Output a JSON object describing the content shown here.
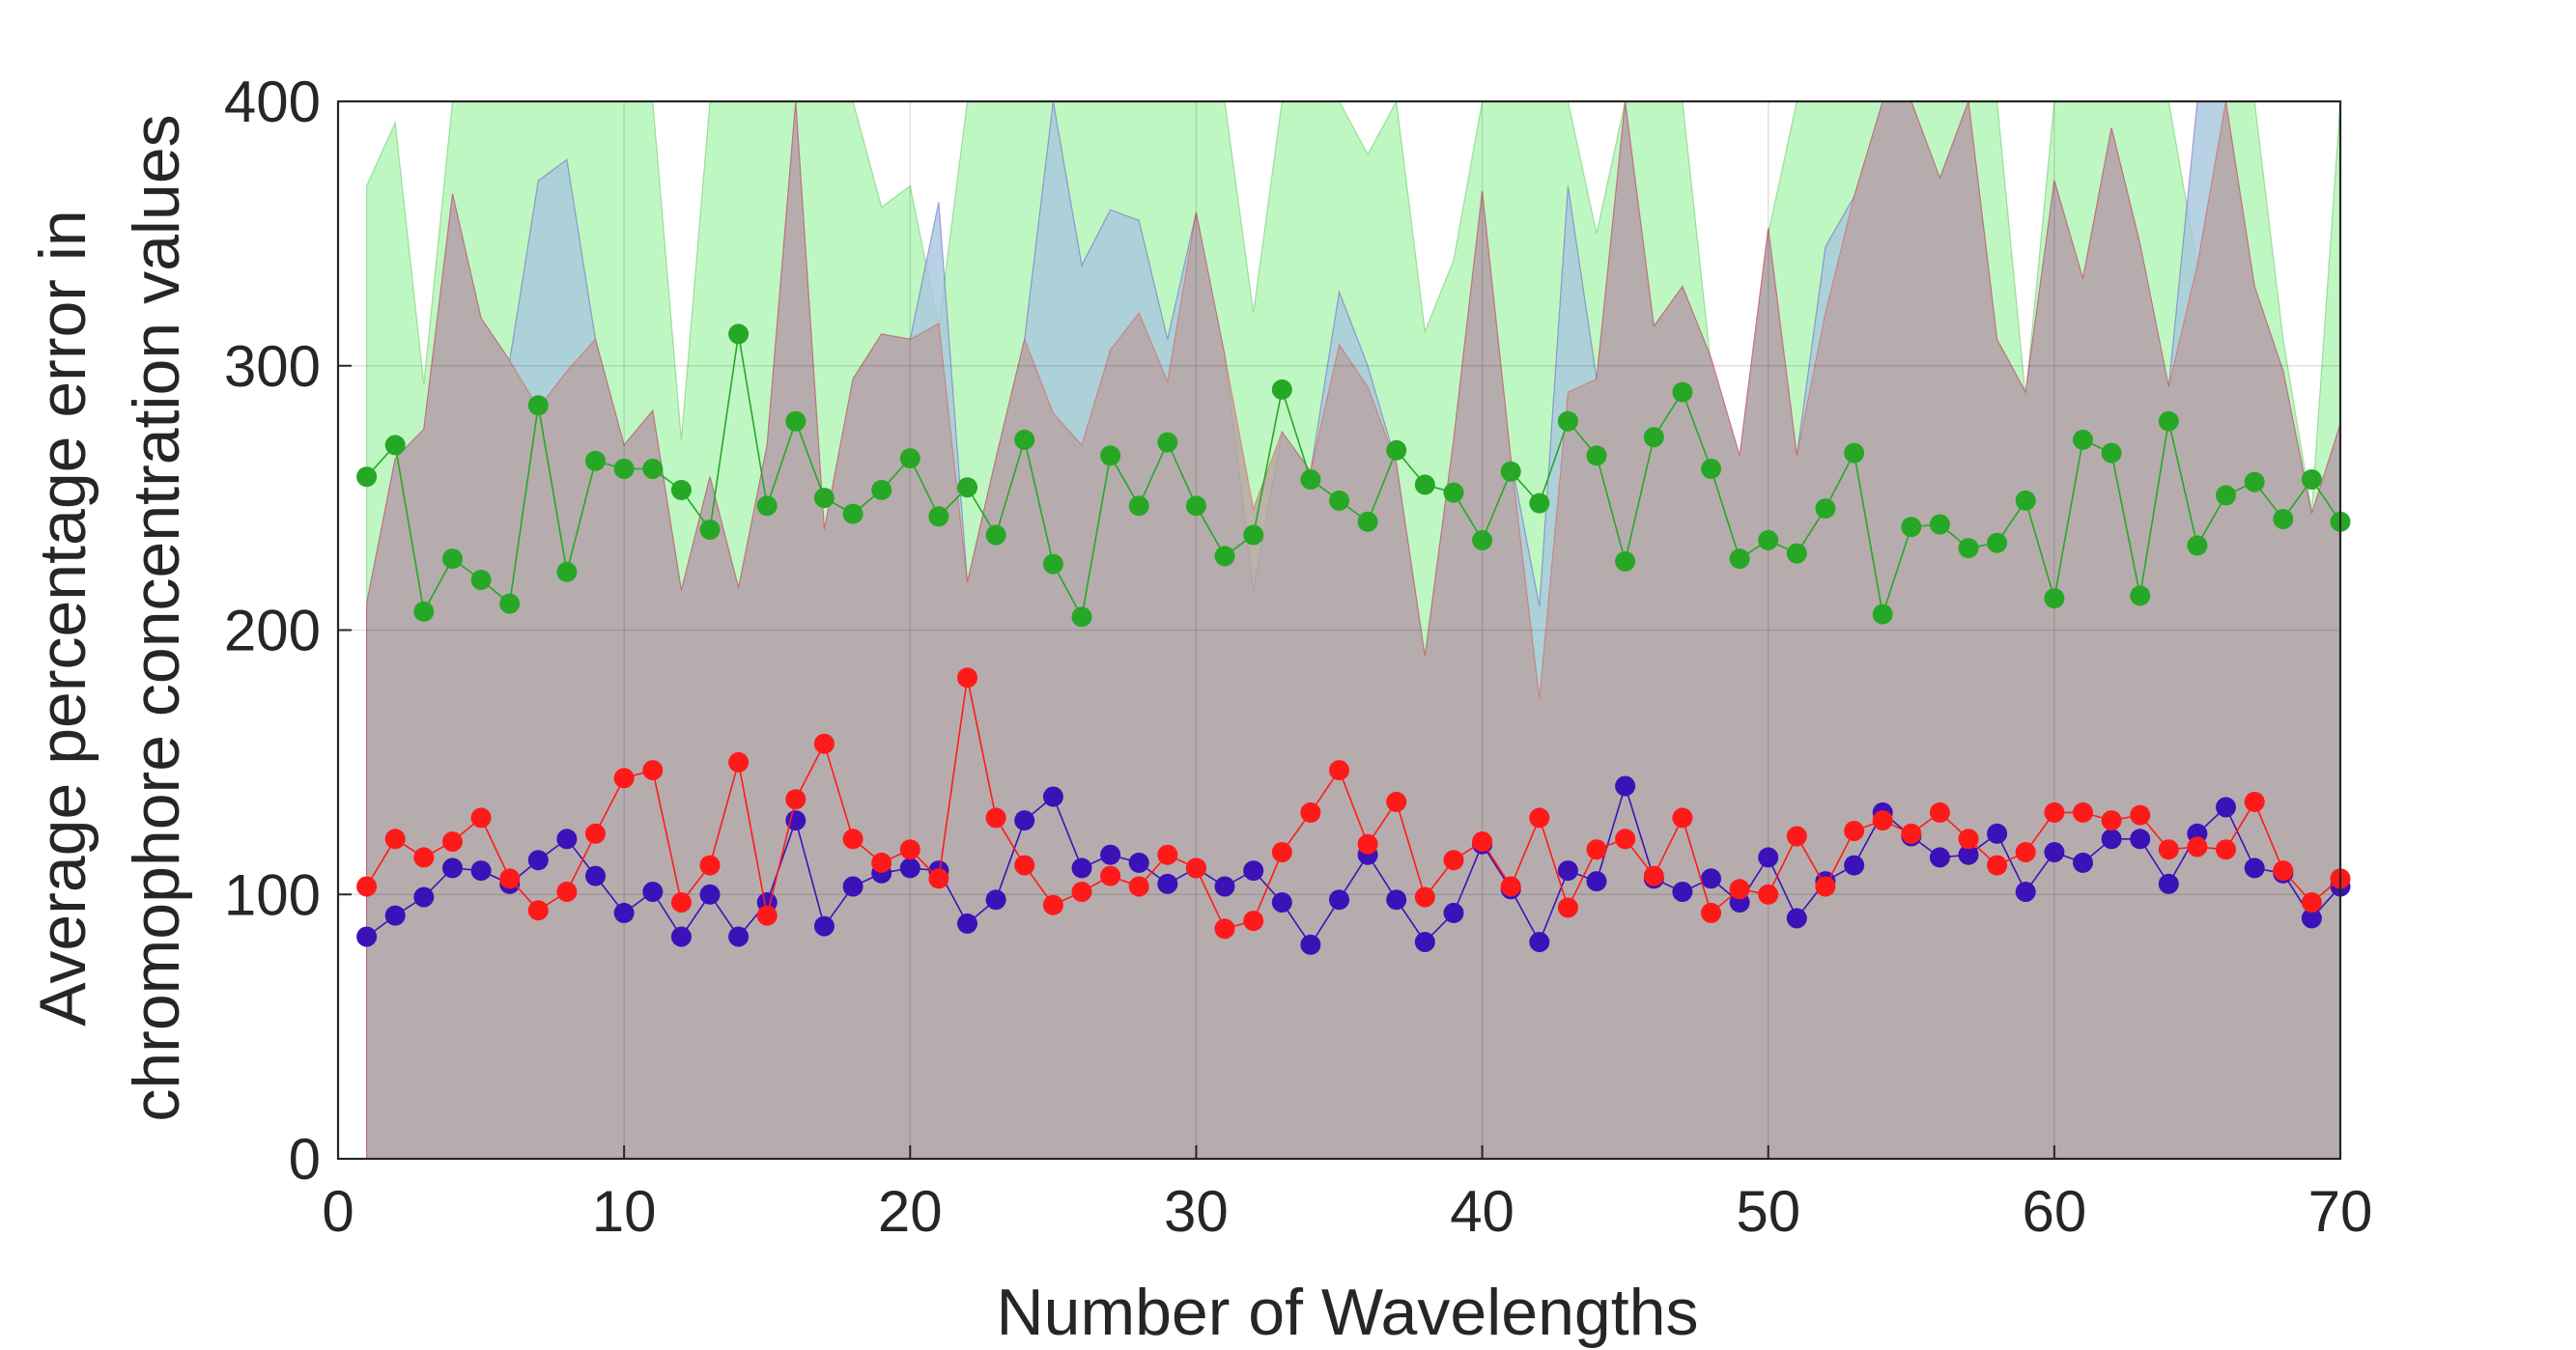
{
  "chart_data": {
    "type": "line",
    "xlabel": "Number of Wavelengths",
    "ylabel": [
      "Average percentage error in",
      "chromophore concentration values"
    ],
    "xlim": [
      0,
      70
    ],
    "ylim": [
      0,
      400
    ],
    "xticks": [
      0,
      10,
      20,
      30,
      40,
      50,
      60,
      70
    ],
    "yticks": [
      0,
      100,
      200,
      300,
      400
    ],
    "grid": true,
    "legend": "none",
    "x": [
      1,
      2,
      3,
      4,
      5,
      6,
      7,
      8,
      9,
      10,
      11,
      12,
      13,
      14,
      15,
      16,
      17,
      18,
      19,
      20,
      21,
      22,
      23,
      24,
      25,
      26,
      27,
      28,
      29,
      30,
      31,
      32,
      33,
      34,
      35,
      36,
      37,
      38,
      39,
      40,
      41,
      42,
      43,
      44,
      45,
      46,
      47,
      48,
      49,
      50,
      51,
      52,
      53,
      54,
      55,
      56,
      57,
      58,
      59,
      60,
      61,
      62,
      63,
      64,
      65,
      66,
      67,
      68,
      69,
      70
    ],
    "series": [
      {
        "color": "#26a826",
        "fill": "#bff7c2",
        "values": [
          258,
          270,
          207,
          227,
          219,
          210,
          285,
          222,
          264,
          261,
          261,
          253,
          238,
          312,
          247,
          279,
          250,
          244,
          253,
          265,
          243,
          254,
          236,
          272,
          225,
          205,
          266,
          247,
          271,
          247,
          228,
          236,
          291,
          257,
          249,
          241,
          268,
          255,
          252,
          234,
          260,
          248,
          279,
          266,
          226,
          273,
          290,
          261,
          227,
          234,
          229,
          246,
          267,
          206,
          239,
          240,
          231,
          233,
          249,
          212,
          272,
          267,
          213,
          279,
          232,
          251,
          256,
          242,
          257,
          241
        ],
        "upper": [
          368,
          392,
          293,
          400,
          400,
          400,
          400,
          400,
          400,
          400,
          400,
          272,
          400,
          400,
          400,
          400,
          400,
          400,
          360,
          368,
          315,
          400,
          400,
          400,
          400,
          400,
          400,
          400,
          400,
          400,
          400,
          320,
          400,
          400,
          400,
          380,
          400,
          313,
          340,
          400,
          400,
          400,
          400,
          350,
          400,
          400,
          400,
          300,
          265,
          350,
          400,
          400,
          400,
          400,
          400,
          400,
          400,
          400,
          288,
          400,
          400,
          400,
          400,
          400,
          338,
          400,
          400,
          310,
          245,
          400
        ]
      },
      {
        "color": "#3b12b8",
        "fill": "#a7c8de",
        "values": [
          84,
          92,
          99,
          110,
          109,
          104,
          113,
          121,
          107,
          93,
          101,
          84,
          100,
          84,
          97,
          128,
          88,
          103,
          108,
          110,
          109,
          89,
          98,
          128,
          137,
          110,
          115,
          112,
          104,
          110,
          103,
          109,
          97,
          81,
          98,
          115,
          98,
          82,
          93,
          119,
          102,
          82,
          109,
          105,
          141,
          106,
          101,
          106,
          97,
          114,
          91,
          105,
          111,
          131,
          122,
          114,
          115,
          123,
          101,
          116,
          112,
          121,
          121,
          104,
          123,
          133,
          110,
          108,
          91,
          103
        ],
        "upper": [
          210,
          265,
          276,
          365,
          318,
          302,
          370,
          378,
          310,
          270,
          283,
          215,
          258,
          216,
          270,
          400,
          238,
          295,
          312,
          310,
          362,
          218,
          265,
          310,
          400,
          338,
          359,
          355,
          310,
          358,
          304,
          215,
          275,
          260,
          328,
          300,
          263,
          190,
          272,
          366,
          265,
          209,
          368,
          295,
          400,
          315,
          330,
          303,
          266,
          352,
          266,
          345,
          364,
          400,
          400,
          371,
          400,
          310,
          290,
          370,
          333,
          390,
          346,
          292,
          400,
          400,
          330,
          298,
          244,
          278
        ]
      },
      {
        "color": "#ff1a1a",
        "fill": "#b8a4a4",
        "values": [
          103,
          121,
          114,
          120,
          129,
          106,
          94,
          101,
          123,
          144,
          147,
          97,
          111,
          150,
          92,
          136,
          157,
          121,
          112,
          117,
          106,
          182,
          129,
          111,
          96,
          101,
          107,
          103,
          115,
          110,
          87,
          90,
          116,
          131,
          147,
          119,
          135,
          99,
          113,
          120,
          103,
          129,
          95,
          117,
          121,
          107,
          129,
          93,
          102,
          100,
          122,
          103,
          124,
          128,
          123,
          131,
          121,
          111,
          116,
          131,
          131,
          128,
          130,
          117,
          118,
          117,
          135,
          109,
          97,
          106
        ],
        "upper": [
          210,
          265,
          276,
          365,
          318,
          302,
          284,
          298,
          310,
          270,
          283,
          215,
          258,
          216,
          270,
          400,
          238,
          295,
          312,
          310,
          316,
          218,
          265,
          310,
          282,
          270,
          306,
          320,
          294,
          358,
          304,
          246,
          275,
          260,
          308,
          292,
          263,
          190,
          272,
          366,
          265,
          174,
          290,
          295,
          400,
          315,
          330,
          303,
          266,
          352,
          266,
          320,
          364,
          400,
          400,
          371,
          400,
          310,
          290,
          370,
          333,
          390,
          346,
          292,
          338,
          400,
          330,
          298,
          244,
          278
        ]
      }
    ]
  }
}
